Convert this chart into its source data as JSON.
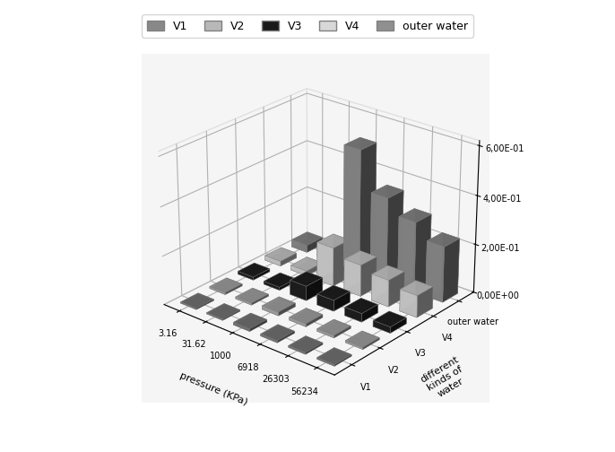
{
  "pressure_labels": [
    "3.16",
    "31.62",
    "1000",
    "6918",
    "26303",
    "56234"
  ],
  "water_labels": [
    "V1",
    "V2",
    "V3",
    "V4",
    "outer water"
  ],
  "xlabel": "pressure (KPa)",
  "ylabel": "different\nkinds of\nwater",
  "zlabel": "",
  "ytick_labels": [
    "V1",
    "V2",
    "V3",
    "V4",
    "outer water"
  ],
  "ztick_labels": [
    "0,00E+00",
    "2,00E-01",
    "4,00E-01",
    "6,00E-01"
  ],
  "zmax": 0.62,
  "colors": {
    "V1": "#808080",
    "V2": "#b0b0b0",
    "V3": "#202020",
    "V4": "#d8d8d8",
    "outer water": "#909090"
  },
  "legend_colors": {
    "V1": "#888888",
    "V2": "#b8b8b8",
    "V3": "#1a1a1a",
    "V4": "#d8d8d8",
    "outer water": "#909090"
  },
  "data": {
    "V1": [
      0.005,
      0.005,
      0.01,
      0.008,
      0.007,
      0.006
    ],
    "V2": [
      0.008,
      0.008,
      0.015,
      0.012,
      0.01,
      0.008
    ],
    "V3": [
      0.012,
      0.012,
      0.06,
      0.045,
      0.035,
      0.025
    ],
    "V4": [
      0.02,
      0.02,
      0.16,
      0.13,
      0.11,
      0.09
    ],
    "outer water": [
      0.03,
      0.03,
      0.51,
      0.35,
      0.29,
      0.23
    ]
  },
  "background_color": "#f5f5f5",
  "figure_bg": "#ffffff"
}
